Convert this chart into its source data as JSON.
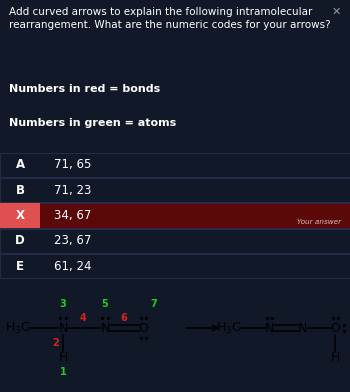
{
  "dark_bg": "#111827",
  "panel_bg": "#1a2035",
  "title_text": "Add curved arrows to explain the following intramolecular\nrearrangement. What are the numeric codes for your arrows?",
  "label_bonds": "Numbers in red = bonds",
  "label_atoms": "Numbers in green = atoms",
  "options": [
    {
      "letter": "A",
      "text": "71, 65",
      "wrong": false
    },
    {
      "letter": "B",
      "text": "71, 23",
      "wrong": false
    },
    {
      "letter": "X",
      "text": "34, 67",
      "wrong": true
    },
    {
      "letter": "D",
      "text": "23, 67",
      "wrong": false
    },
    {
      "letter": "E",
      "text": "61, 24",
      "wrong": false
    }
  ],
  "your_answer_label": "Your answer",
  "text_color": "#ffffff",
  "row_border": "#2a3050",
  "wrong_row_bg": "#5a0808",
  "wrong_letter_bg": "#e05050",
  "close_color": "#999999",
  "title_fontsize": 7.5,
  "option_fontsize": 8.5,
  "label_fontsize": 8.0,
  "chem_bg": "#ffffff",
  "chem_text": "#000000",
  "green_color": "#22cc22",
  "red_color": "#dd2222"
}
